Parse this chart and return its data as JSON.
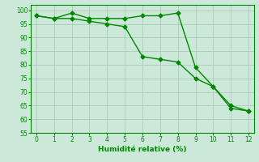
{
  "title": "",
  "xlabel": "Humidité relative (%)",
  "ylabel": "",
  "xlim": [
    -0.3,
    12.3
  ],
  "ylim": [
    55,
    102
  ],
  "yticks": [
    55,
    60,
    65,
    70,
    75,
    80,
    85,
    90,
    95,
    100
  ],
  "xticks": [
    0,
    1,
    2,
    3,
    4,
    5,
    6,
    7,
    8,
    9,
    10,
    11,
    12
  ],
  "background_color": "#cce8d8",
  "grid_color": "#aaccbb",
  "line_color": "#008800",
  "series1_x": [
    0,
    1,
    2,
    3,
    4,
    5,
    6,
    7,
    8,
    9,
    10,
    11,
    12
  ],
  "series1_y": [
    98,
    97,
    97,
    96,
    95,
    94,
    83,
    82,
    81,
    75,
    72,
    65,
    63
  ],
  "series2_x": [
    0,
    1,
    2,
    3,
    4,
    5,
    6,
    7,
    8,
    9,
    10,
    11,
    12
  ],
  "series2_y": [
    98,
    97,
    99,
    97,
    97,
    97,
    98,
    98,
    99,
    79,
    72,
    64,
    63
  ],
  "marker": "D",
  "markersize": 2.5,
  "linewidth": 1.0
}
